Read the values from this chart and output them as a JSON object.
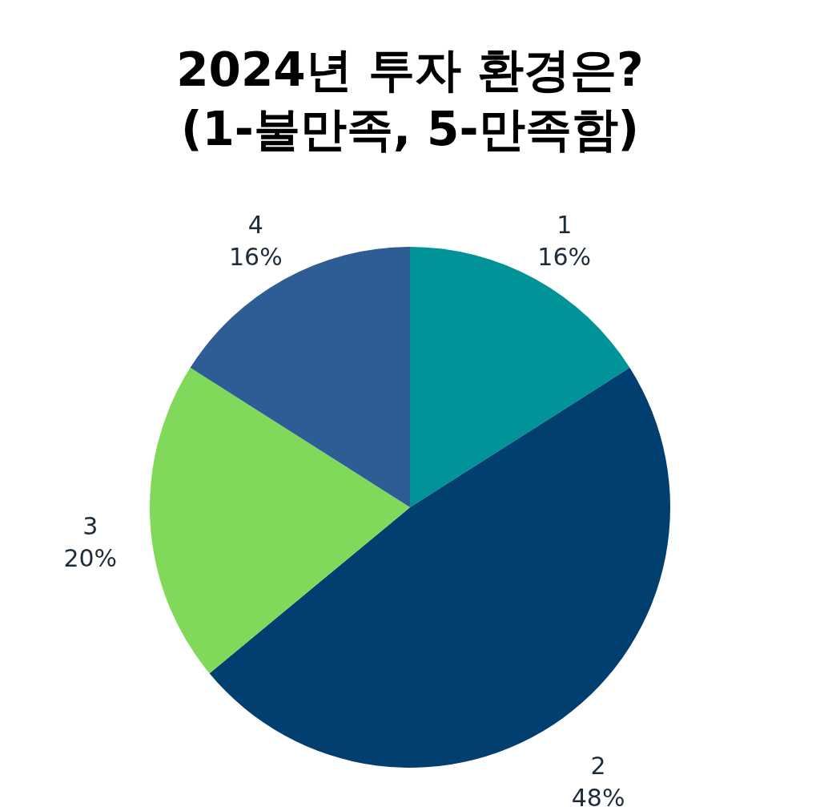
{
  "chart_data": {
    "type": "pie",
    "title": "2024년 투자 환경은?\n(1-불만족, 5-만족함)",
    "categories": [
      "1",
      "2",
      "3",
      "4"
    ],
    "values": [
      16,
      48,
      20,
      16
    ],
    "value_labels": [
      "16%",
      "48%",
      "20%",
      "16%"
    ],
    "colors": [
      "#009499",
      "#003f6f",
      "#80d95a",
      "#2e5d95"
    ],
    "legend": false
  }
}
